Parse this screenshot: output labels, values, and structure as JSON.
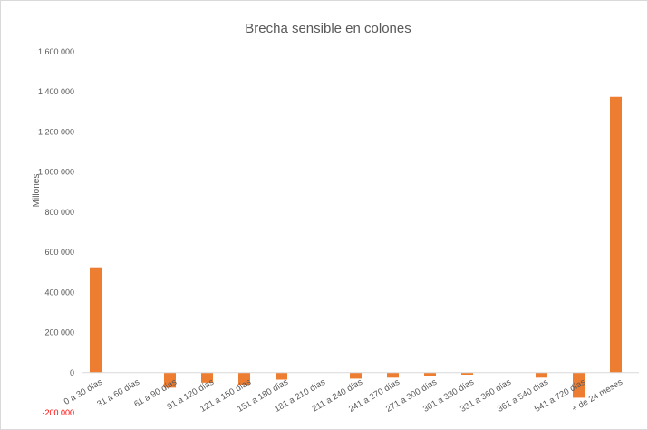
{
  "chart_data": {
    "type": "bar",
    "title": "Brecha sensible en colones",
    "ylabel": "Millones",
    "xlabel": "",
    "ylim": [
      -200000,
      1600000
    ],
    "yticks": [
      -200000,
      0,
      200000,
      400000,
      600000,
      800000,
      1000000,
      1200000,
      1400000,
      1600000
    ],
    "ytick_labels": [
      "-200 000",
      "0",
      "200 000",
      "400 000",
      "600 000",
      "800 000",
      "1 000 000",
      "1 200 000",
      "1 400 000",
      "1 600 000"
    ],
    "categories": [
      "0 a 30 días",
      "31 a 60 días",
      "61 a 90 días",
      "91 a 120 días",
      "121 a 150 días",
      "151 a 180 días",
      "181 a 210 días",
      "211 a 240 días",
      "241 a 270 días",
      "271 a 300 días",
      "301 a 330 días",
      "331 a 360 días",
      "361 a 540 días",
      "541 a 720 días",
      "+ de 24 meses"
    ],
    "values": [
      525000,
      0,
      -75000,
      -50000,
      -60000,
      -35000,
      0,
      -30000,
      -25000,
      -15000,
      -10000,
      0,
      -25000,
      -125000,
      1375000
    ],
    "bar_color": "#ed7d31",
    "negative_tick_color": "#ff0000",
    "grid": false,
    "legend": "none"
  }
}
